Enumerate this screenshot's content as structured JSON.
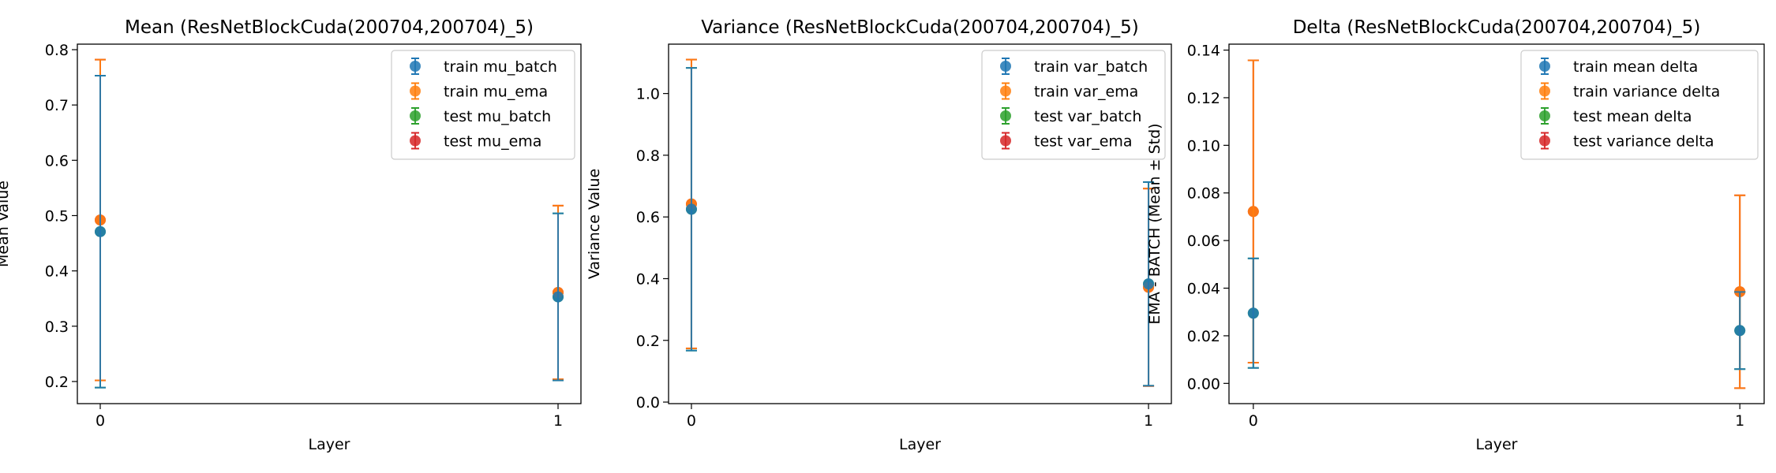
{
  "chart_data": [
    {
      "type": "scatter",
      "title": "Mean (ResNetBlockCuda(200704,200704)_5)",
      "xlabel": "Layer",
      "ylabel": "Mean Value",
      "x_ticks": [
        "0",
        "1"
      ],
      "y_ticks": [
        "0.2",
        "0.3",
        "0.4",
        "0.5",
        "0.6",
        "0.7",
        "0.8"
      ],
      "xlim": [
        -0.05,
        1.05
      ],
      "ylim": [
        0.16,
        0.81
      ],
      "legend_position": "top-right",
      "error_bars": true,
      "x": [
        0,
        1
      ],
      "series": [
        {
          "name": "train mu_batch",
          "color": "#1f77b4",
          "values": [
            0.471,
            0.353
          ],
          "errors": [
            0.282,
            0.151
          ]
        },
        {
          "name": "train mu_ema",
          "color": "#ff7f0e",
          "values": [
            0.492,
            0.361
          ],
          "errors": [
            0.29,
            0.157
          ]
        },
        {
          "name": "test mu_batch",
          "color": "#2ca02c",
          "values": [
            0.471,
            0.353
          ],
          "errors": [
            0.282,
            0.151
          ]
        },
        {
          "name": "test mu_ema",
          "color": "#d62728",
          "values": [
            0.492,
            0.361
          ],
          "errors": [
            0.29,
            0.157
          ]
        }
      ]
    },
    {
      "type": "scatter",
      "title": "Variance (ResNetBlockCuda(200704,200704)_5)",
      "xlabel": "Layer",
      "ylabel": "Variance Value",
      "x_ticks": [
        "0",
        "1"
      ],
      "y_ticks": [
        "0.0",
        "0.2",
        "0.4",
        "0.6",
        "0.8",
        "1.0"
      ],
      "xlim": [
        -0.05,
        1.05
      ],
      "ylim": [
        -0.005,
        1.16
      ],
      "legend_position": "top-right",
      "error_bars": true,
      "x": [
        0,
        1
      ],
      "series": [
        {
          "name": "train var_batch",
          "color": "#1f77b4",
          "values": [
            0.625,
            0.383
          ],
          "errors": [
            0.458,
            0.33
          ]
        },
        {
          "name": "train var_ema",
          "color": "#ff7f0e",
          "values": [
            0.642,
            0.372
          ],
          "errors": [
            0.468,
            0.32
          ]
        },
        {
          "name": "test var_batch",
          "color": "#2ca02c",
          "values": [
            0.625,
            0.383
          ],
          "errors": [
            0.458,
            0.33
          ]
        },
        {
          "name": "test var_ema",
          "color": "#d62728",
          "values": [
            0.642,
            0.372
          ],
          "errors": [
            0.468,
            0.32
          ]
        }
      ]
    },
    {
      "type": "scatter",
      "title": "Delta (ResNetBlockCuda(200704,200704)_5)",
      "xlabel": "Layer",
      "ylabel": "EMA - BATCH (Mean ± Std)",
      "x_ticks": [
        "0",
        "1"
      ],
      "y_ticks": [
        "0.00",
        "0.02",
        "0.04",
        "0.06",
        "0.08",
        "0.10",
        "0.12",
        "0.14"
      ],
      "xlim": [
        -0.05,
        1.05
      ],
      "ylim": [
        -0.0085,
        0.1425
      ],
      "legend_position": "top-right",
      "error_bars": true,
      "x": [
        0,
        1
      ],
      "series": [
        {
          "name": "train mean delta",
          "color": "#1f77b4",
          "values": [
            0.0295,
            0.0222
          ],
          "errors": [
            0.023,
            0.0162
          ]
        },
        {
          "name": "train variance delta",
          "color": "#ff7f0e",
          "values": [
            0.0722,
            0.0385
          ],
          "errors": [
            0.0635,
            0.0405
          ]
        },
        {
          "name": "test mean delta",
          "color": "#2ca02c",
          "values": [
            0.0295,
            0.0222
          ],
          "errors": [
            0.023,
            0.0162
          ]
        },
        {
          "name": "test variance delta",
          "color": "#d62728",
          "values": [
            0.0722,
            0.0385
          ],
          "errors": [
            0.0635,
            0.0405
          ]
        }
      ]
    }
  ]
}
